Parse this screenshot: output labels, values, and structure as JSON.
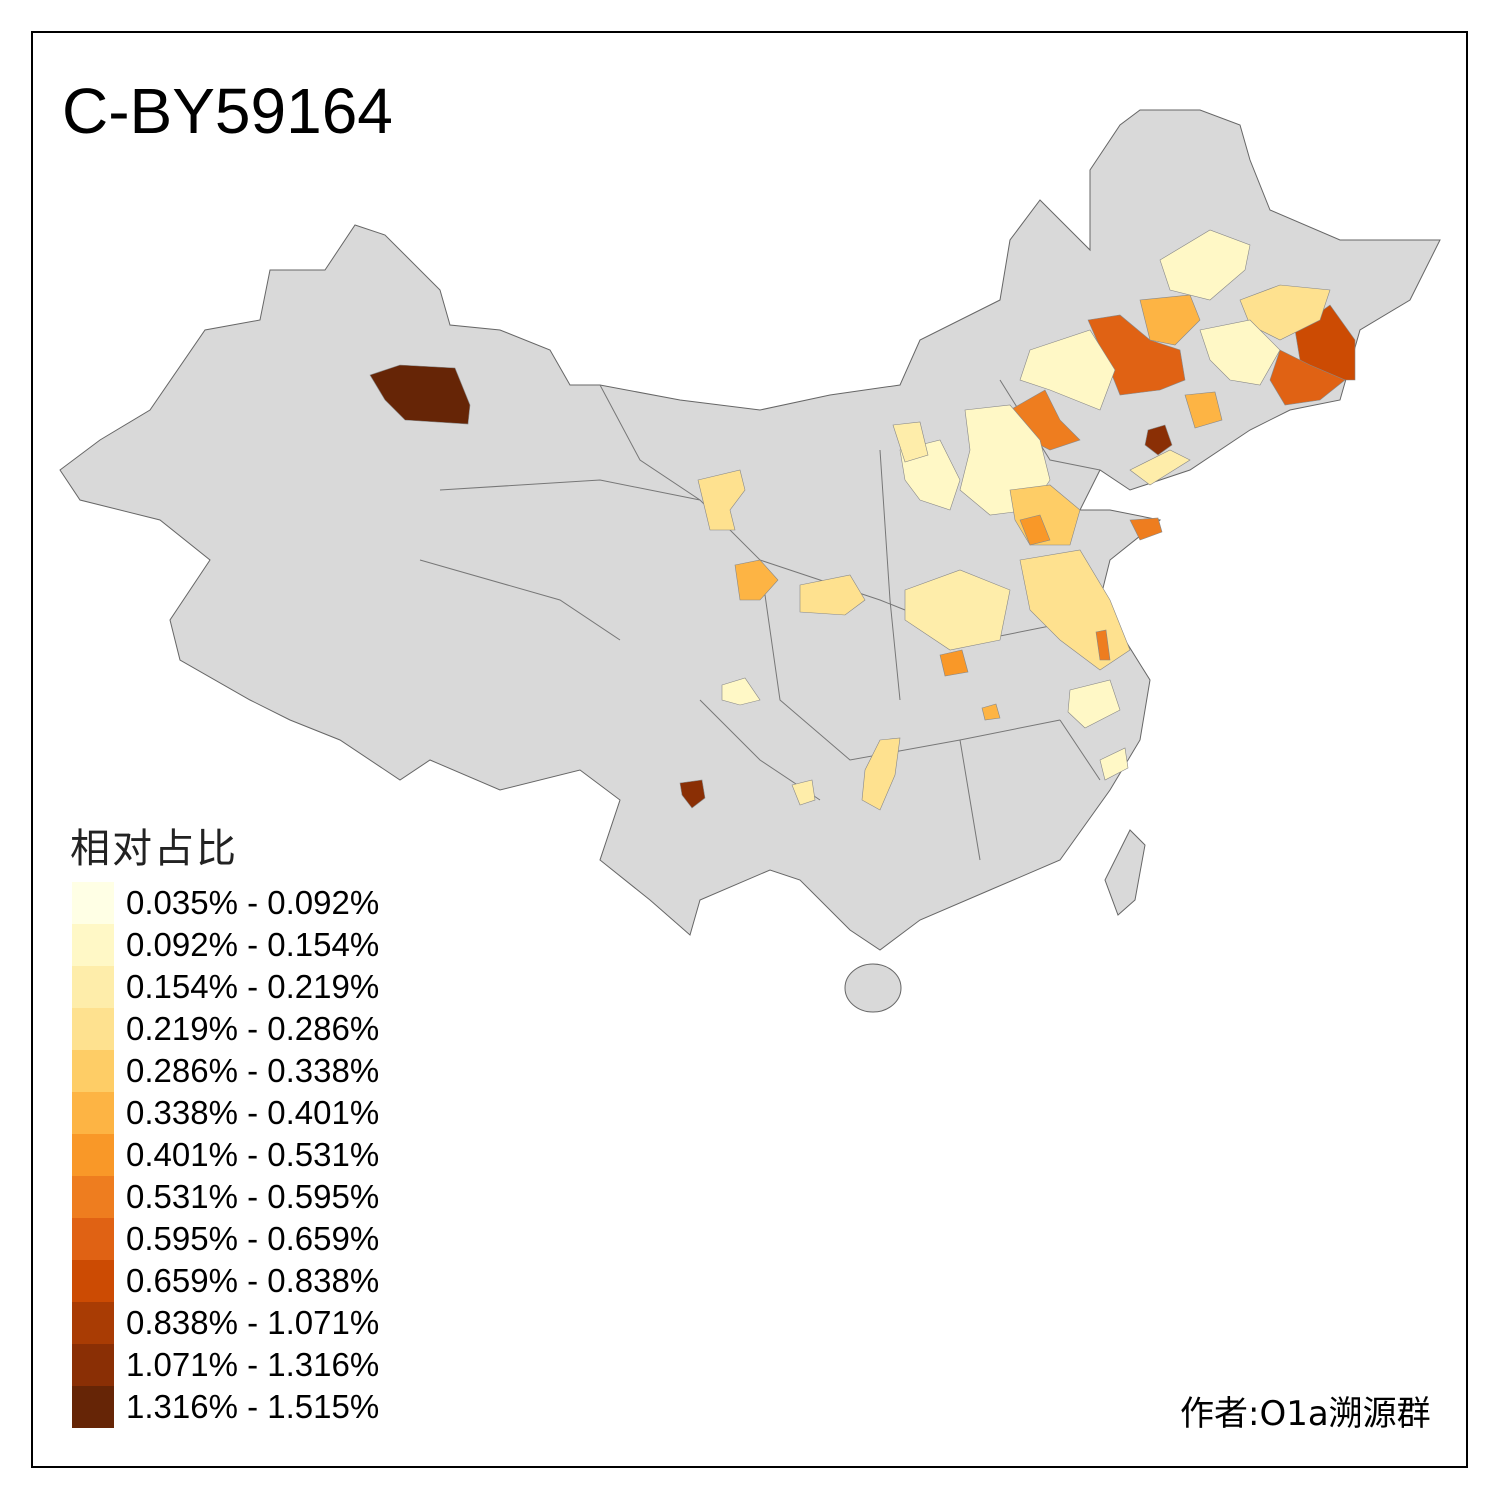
{
  "title": "C-BY59164",
  "legend": {
    "title": "相对占比",
    "bins": [
      {
        "label": "0.035% - 0.092%",
        "color": "#FFFFE5"
      },
      {
        "label": "0.092% - 0.154%",
        "color": "#FFF8C6"
      },
      {
        "label": "0.154% - 0.219%",
        "color": "#FEEDAA"
      },
      {
        "label": "0.219% - 0.286%",
        "color": "#FEE18F"
      },
      {
        "label": "0.286% - 0.338%",
        "color": "#FECD66"
      },
      {
        "label": "0.338% - 0.401%",
        "color": "#FDB444"
      },
      {
        "label": "0.401% - 0.531%",
        "color": "#F99828"
      },
      {
        "label": "0.531% - 0.595%",
        "color": "#EE7D1F"
      },
      {
        "label": "0.595% - 0.659%",
        "color": "#E06214"
      },
      {
        "label": "0.659% - 0.838%",
        "color": "#CC4B03"
      },
      {
        "label": "0.838% - 1.071%",
        "color": "#A93C04"
      },
      {
        "label": "1.071% - 1.316%",
        "color": "#8A2F05"
      },
      {
        "label": "1.316% - 1.515%",
        "color": "#662506"
      }
    ]
  },
  "map": {
    "base_color": "#D9D9D9",
    "border_color": "#555555"
  },
  "author": "作者:O1a溯源群"
}
